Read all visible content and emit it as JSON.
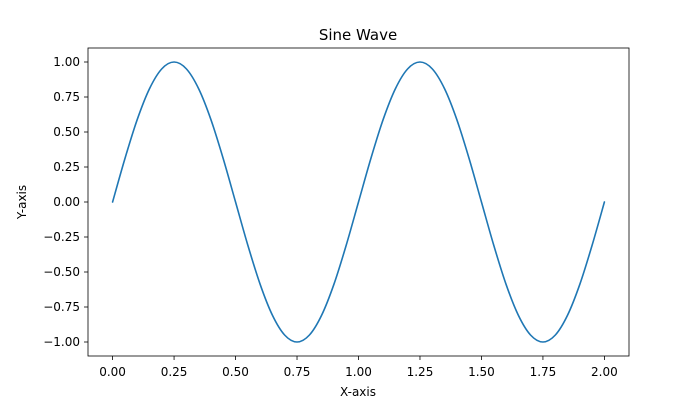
{
  "chart_data": {
    "type": "line",
    "title": "Sine Wave",
    "xlabel": "X-axis",
    "ylabel": "Y-axis",
    "xlim": [
      -0.1,
      2.1
    ],
    "ylim": [
      -1.1,
      1.1
    ],
    "x_ticks": [
      0.0,
      0.25,
      0.5,
      0.75,
      1.0,
      1.25,
      1.5,
      1.75,
      2.0
    ],
    "x_tick_labels": [
      "0.00",
      "0.25",
      "0.50",
      "0.75",
      "1.00",
      "1.25",
      "1.50",
      "1.75",
      "2.00"
    ],
    "y_ticks": [
      1.0,
      0.75,
      0.5,
      0.25,
      0.0,
      -0.25,
      -0.5,
      -0.75,
      -1.0
    ],
    "y_tick_labels": [
      "1.00",
      "0.75",
      "0.50",
      "0.25",
      "0.00",
      "−0.25",
      "−0.50",
      "−0.75",
      "−1.00"
    ],
    "grid": false,
    "series": [
      {
        "color": "#1f77b4",
        "x": [
          0.0,
          0.05,
          0.1,
          0.15,
          0.2,
          0.25,
          0.3,
          0.35,
          0.4,
          0.45,
          0.5,
          0.55,
          0.6,
          0.65,
          0.7,
          0.75,
          0.8,
          0.85,
          0.9,
          0.95,
          1.0,
          1.05,
          1.1,
          1.15,
          1.2,
          1.25,
          1.3,
          1.35,
          1.4,
          1.45,
          1.5,
          1.55,
          1.6,
          1.65,
          1.7,
          1.75,
          1.8,
          1.85,
          1.9,
          1.95,
          2.0
        ],
        "y": [
          0.0,
          0.309,
          0.588,
          0.809,
          0.951,
          1.0,
          0.951,
          0.809,
          0.588,
          0.309,
          0.0,
          -0.309,
          -0.588,
          -0.809,
          -0.951,
          -1.0,
          -0.951,
          -0.809,
          -0.588,
          -0.309,
          0.0,
          0.309,
          0.588,
          0.809,
          0.951,
          1.0,
          0.951,
          0.809,
          0.588,
          0.309,
          0.0,
          -0.309,
          -0.588,
          -0.809,
          -0.951,
          -1.0,
          -0.951,
          -0.809,
          -0.588,
          -0.309,
          0.0
        ]
      }
    ]
  }
}
